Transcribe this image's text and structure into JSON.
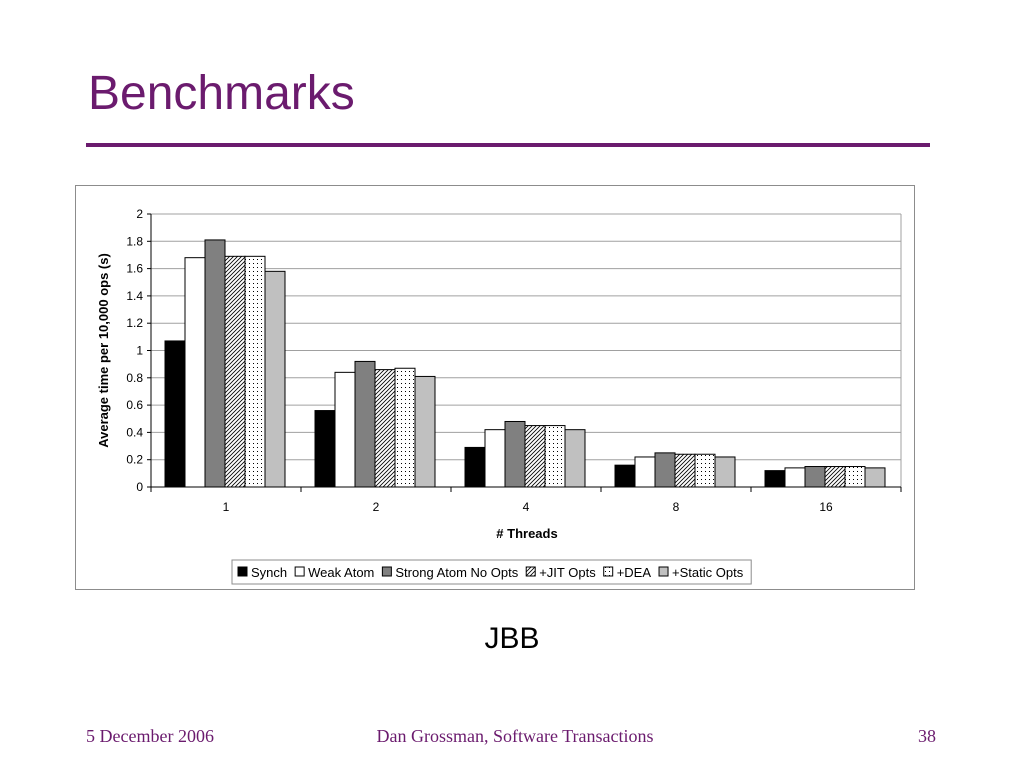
{
  "slide": {
    "title": "Benchmarks",
    "caption": "JBB",
    "footer_date": "5 December 2006",
    "footer_author": "Dan Grossman, Software Transactions",
    "page_number": "38"
  },
  "chart_data": {
    "type": "bar",
    "title": "",
    "xlabel": "# Threads",
    "ylabel": "Average time per 10,000 ops (s)",
    "categories": [
      "1",
      "2",
      "4",
      "8",
      "16"
    ],
    "ylim": [
      0,
      2
    ],
    "yticks": [
      "0",
      "0.2",
      "0.4",
      "0.6",
      "0.8",
      "1",
      "1.2",
      "1.4",
      "1.6",
      "1.8",
      "2"
    ],
    "grid": true,
    "legend_position": "bottom",
    "series": [
      {
        "name": "Synch",
        "values": [
          1.07,
          0.56,
          0.29,
          0.16,
          0.12
        ]
      },
      {
        "name": "Weak Atom",
        "values": [
          1.68,
          0.84,
          0.42,
          0.22,
          0.14
        ]
      },
      {
        "name": "Strong Atom No Opts",
        "values": [
          1.81,
          0.92,
          0.48,
          0.25,
          0.15
        ]
      },
      {
        "name": "+JIT Opts",
        "values": [
          1.69,
          0.86,
          0.45,
          0.24,
          0.15
        ]
      },
      {
        "name": "+DEA",
        "values": [
          1.69,
          0.87,
          0.45,
          0.24,
          0.15
        ]
      },
      {
        "name": "+Static Opts",
        "values": [
          1.58,
          0.81,
          0.42,
          0.22,
          0.14
        ]
      }
    ],
    "series_styles": [
      {
        "fill": "#000000",
        "pattern": "solid"
      },
      {
        "fill": "#ffffff",
        "pattern": "solid"
      },
      {
        "fill": "#808080",
        "pattern": "solid"
      },
      {
        "fill": "#ffffff",
        "pattern": "diagonal"
      },
      {
        "fill": "#ffffff",
        "pattern": "dots"
      },
      {
        "fill": "#c0c0c0",
        "pattern": "solid"
      }
    ]
  }
}
